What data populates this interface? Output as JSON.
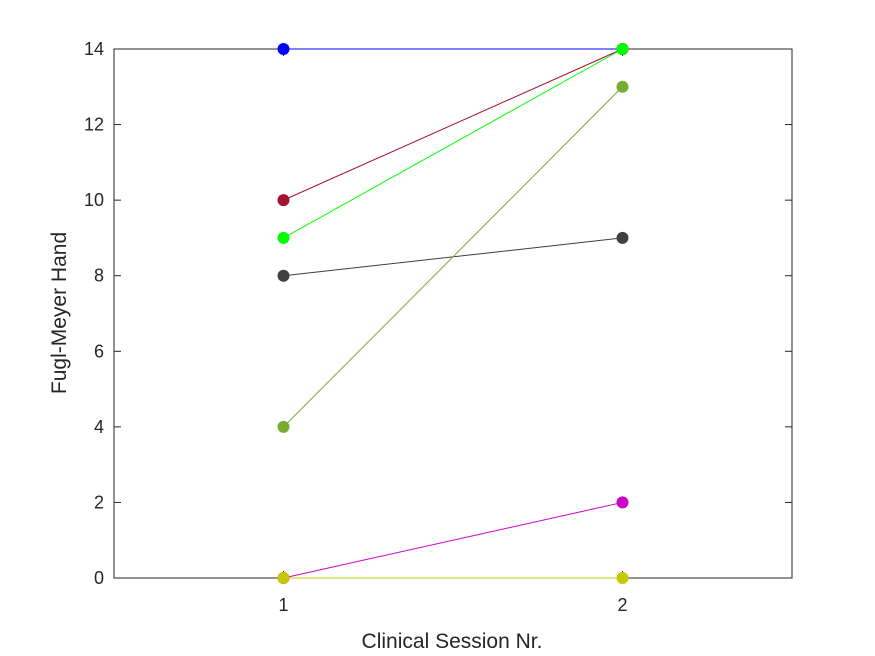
{
  "chart_data": {
    "type": "line",
    "title": "",
    "xlabel": "Clinical Session Nr.",
    "ylabel": "Fugl-Meyer Hand",
    "x": [
      1,
      2
    ],
    "xlim": [
      0.5,
      2.5
    ],
    "ylim": [
      0,
      14
    ],
    "xticks": [
      "1",
      "2"
    ],
    "yticks": [
      "0",
      "2",
      "4",
      "6",
      "8",
      "10",
      "12",
      "14"
    ],
    "grid": false,
    "series": [
      {
        "name": "series-1",
        "values": [
          14,
          14
        ],
        "color": "#0000ff"
      },
      {
        "name": "series-2",
        "values": [
          10,
          14
        ],
        "color": "#a2142f"
      },
      {
        "name": "series-3",
        "values": [
          9,
          14
        ],
        "color": "#00ff00"
      },
      {
        "name": "series-4",
        "values": [
          8,
          9
        ],
        "color": "#404040"
      },
      {
        "name": "series-5",
        "values": [
          4,
          13
        ],
        "color": "#77ac30"
      },
      {
        "name": "series-6",
        "values": [
          0,
          2
        ],
        "color": "#cc00cc"
      },
      {
        "name": "series-7",
        "values": [
          0,
          0
        ],
        "color": "#c8c800"
      }
    ]
  }
}
